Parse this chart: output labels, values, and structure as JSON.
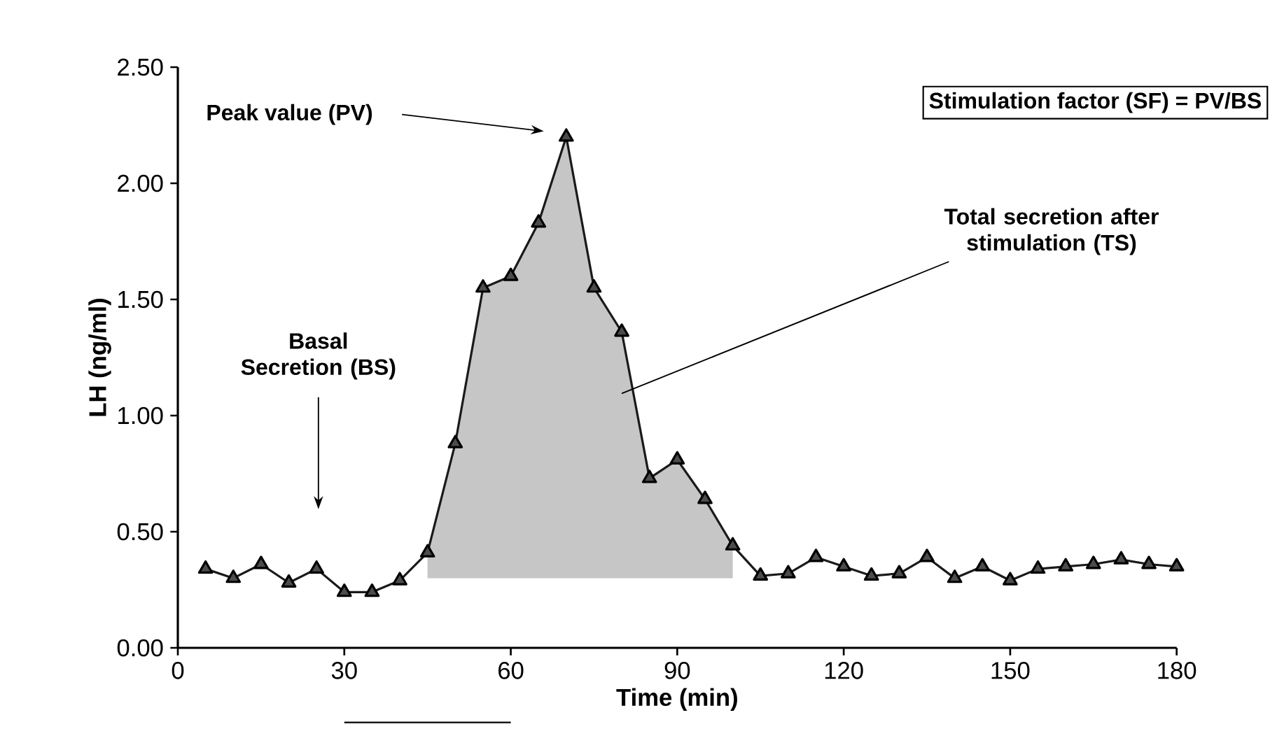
{
  "chart_data": {
    "type": "line",
    "xlabel": "Time (min)",
    "ylabel": "LH (ng/ml)",
    "xlim": [
      0,
      180
    ],
    "ylim": [
      0,
      2.5
    ],
    "xticks": [
      0,
      30,
      60,
      90,
      120,
      150,
      180
    ],
    "yticks": [
      {
        "value": 0,
        "label": "0.00"
      },
      {
        "value": 0.5,
        "label": "0.50"
      },
      {
        "value": 1,
        "label": "1.00"
      },
      {
        "value": 1.5,
        "label": "1.50"
      },
      {
        "value": 2,
        "label": "2.00"
      },
      {
        "value": 2.5,
        "label": "2.50"
      }
    ],
    "marker": "triangle",
    "series": [
      {
        "color": "#1a1a1a",
        "x": [
          5,
          10,
          15,
          20,
          25,
          30,
          35,
          40,
          45,
          50,
          55,
          60,
          65,
          70,
          75,
          80,
          85,
          90,
          95,
          100,
          105,
          110,
          115,
          120,
          125,
          130,
          135,
          140,
          145,
          150,
          155,
          160,
          165,
          170,
          175,
          180
        ],
        "values": [
          0.34,
          0.3,
          0.36,
          0.28,
          0.34,
          0.24,
          0.24,
          0.29,
          0.41,
          0.88,
          1.55,
          1.6,
          1.83,
          2.2,
          1.55,
          1.36,
          0.73,
          0.81,
          0.64,
          0.44,
          0.31,
          0.32,
          0.39,
          0.35,
          0.31,
          0.32,
          0.39,
          0.3,
          0.35,
          0.29,
          0.34,
          0.35,
          0.36,
          0.38,
          0.36,
          0.35
        ],
        "lower": [
          null,
          null,
          null,
          null,
          null,
          null,
          null,
          null,
          0.3,
          0.3,
          0.3,
          0.3,
          0.3,
          0.3,
          0.3,
          0.3,
          0.3,
          0.3,
          0.3,
          0.3,
          null,
          null,
          null,
          null,
          null,
          null,
          null,
          null,
          null,
          null,
          null,
          null,
          null,
          null,
          null,
          null
        ],
        "upper": [
          null,
          null,
          null,
          null,
          null,
          null,
          null,
          null,
          0.41,
          0.88,
          1.55,
          1.6,
          1.83,
          2.2,
          1.55,
          1.36,
          0.73,
          0.81,
          0.64,
          0.44,
          null,
          null,
          null,
          null,
          null,
          null,
          null,
          null,
          null,
          null,
          null,
          null,
          null,
          null,
          null,
          null
        ]
      }
    ],
    "annotations": [
      "Peak value (PV)",
      "Total secretion after stimulation (TS)",
      "Basal Secretion (BS)",
      "Stimulation factor (SF) = PV/BS"
    ]
  }
}
